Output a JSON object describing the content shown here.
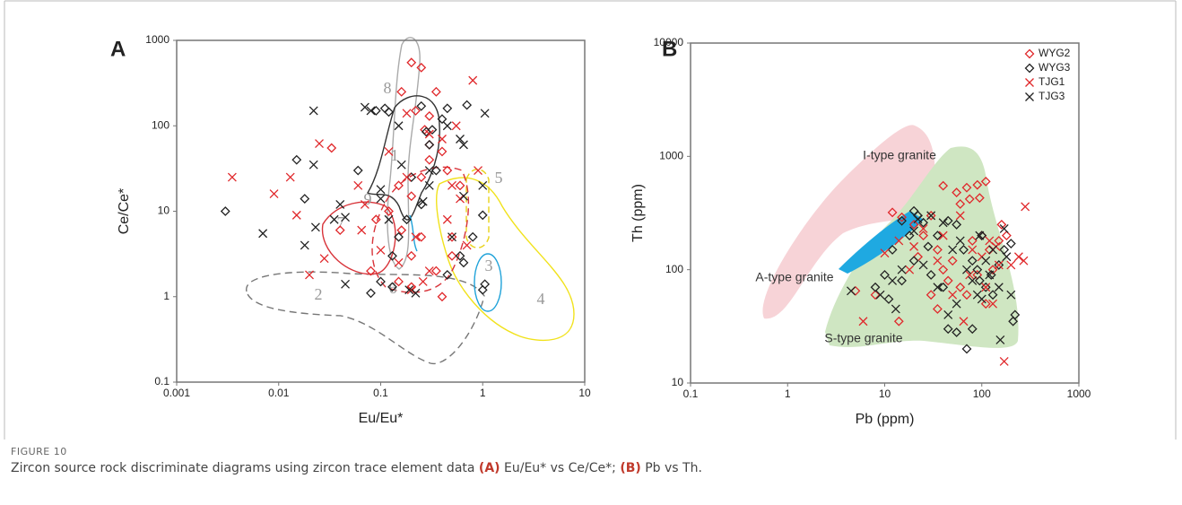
{
  "chart_data": [
    {
      "type": "scatter",
      "panel": "A",
      "xlabel": "Eu/Eu*",
      "ylabel": "Ce/Ce*",
      "log_x": true,
      "log_y": true,
      "xlim": [
        0.001,
        10
      ],
      "ylim": [
        0.1,
        1000
      ],
      "xticks": [
        0.001,
        0.01,
        0.1,
        1,
        10
      ],
      "yticks": [
        0.1,
        1,
        10,
        100,
        1000
      ],
      "annotations": [
        "8",
        "1",
        "5",
        "9",
        "7",
        "6",
        "3",
        "2",
        "4"
      ],
      "series": [
        {
          "marker": "diamond",
          "color": "#e0282b",
          "x": [
            0.2,
            0.25,
            0.16,
            0.22,
            0.3,
            0.35,
            0.27,
            0.4,
            0.3,
            0.45,
            0.25,
            0.2,
            0.15,
            0.12,
            0.09,
            0.04,
            0.033,
            0.3,
            0.2,
            0.25,
            0.15,
            0.35,
            0.4,
            0.2,
            0.5,
            0.6,
            0.08,
            0.5,
            0.16
          ],
          "y": [
            550,
            480,
            250,
            150,
            130,
            250,
            90,
            50,
            60,
            30,
            25,
            15,
            20,
            10,
            8,
            6,
            55,
            40,
            3,
            5,
            1.5,
            2,
            1,
            1.3,
            5,
            20,
            2,
            3,
            6
          ]
        },
        {
          "marker": "diamond",
          "color": "#222222",
          "x": [
            0.003,
            0.015,
            0.018,
            0.06,
            0.09,
            0.11,
            0.12,
            0.25,
            0.28,
            0.32,
            0.45,
            0.7,
            0.4,
            0.3,
            0.35,
            0.2,
            0.18,
            0.15,
            0.13,
            0.08,
            0.1,
            0.13,
            0.45,
            0.65,
            1,
            1.05,
            1,
            0.6,
            0.25,
            0.8
          ],
          "y": [
            10,
            40,
            14,
            30,
            150,
            160,
            145,
            170,
            85,
            90,
            160,
            175,
            120,
            60,
            30,
            25,
            8,
            5,
            3,
            1.1,
            1.5,
            1.3,
            1.8,
            2.5,
            9,
            1.4,
            1.2,
            3,
            12,
            5
          ]
        },
        {
          "marker": "x",
          "color": "#e0282b",
          "x": [
            0.0035,
            0.009,
            0.013,
            0.015,
            0.025,
            0.028,
            0.02,
            0.06,
            0.065,
            0.07,
            0.12,
            0.18,
            0.3,
            0.4,
            0.55,
            0.8,
            0.5,
            0.6,
            0.45,
            0.22,
            0.15,
            0.3,
            0.2,
            0.26,
            0.7,
            0.9,
            0.1,
            0.18
          ],
          "y": [
            25,
            16,
            25,
            9,
            62,
            2.8,
            1.8,
            20,
            6,
            12,
            50,
            140,
            80,
            70,
            100,
            340,
            20,
            14,
            8,
            5,
            2.5,
            2,
            1.2,
            1.5,
            4,
            30,
            3.5,
            25
          ]
        },
        {
          "marker": "x",
          "color": "#222222",
          "x": [
            0.007,
            0.018,
            0.022,
            0.022,
            0.023,
            0.035,
            0.04,
            0.045,
            0.045,
            0.07,
            0.08,
            0.1,
            0.15,
            0.16,
            0.3,
            0.45,
            0.6,
            0.65,
            1.05,
            0.26,
            0.12,
            0.3,
            0.19,
            0.22,
            0.5,
            0.65,
            1,
            0.1
          ],
          "y": [
            5.5,
            4,
            150,
            35,
            6.5,
            8,
            12,
            1.4,
            8.5,
            165,
            150,
            18,
            100,
            35,
            30,
            100,
            70,
            60,
            140,
            13,
            8,
            20,
            1.2,
            1.1,
            5,
            15,
            20,
            14
          ]
        }
      ]
    },
    {
      "type": "scatter",
      "panel": "B",
      "xlabel": "Pb (ppm)",
      "ylabel": "Th (ppm)",
      "log_x": true,
      "log_y": true,
      "xlim": [
        0.1,
        1000
      ],
      "ylim": [
        10,
        10000
      ],
      "xticks": [
        0.1,
        1,
        10,
        100,
        1000
      ],
      "yticks": [
        10,
        100,
        1000,
        10000
      ],
      "legend": "upper right",
      "annotations": [
        "I-type granite",
        "A-type granite",
        "S-type granite"
      ],
      "series": [
        {
          "name": "WYG2",
          "marker": "diamond",
          "color": "#e0282b",
          "x": [
            40,
            70,
            90,
            110,
            55,
            75,
            95,
            60,
            30,
            15,
            12,
            20,
            25,
            35,
            50,
            80,
            100,
            120,
            150,
            130,
            45,
            60,
            90,
            110,
            30,
            5,
            8,
            14,
            40,
            22,
            160,
            180,
            70,
            35
          ],
          "y": [
            550,
            530,
            560,
            600,
            480,
            420,
            430,
            380,
            300,
            290,
            320,
            250,
            200,
            150,
            120,
            180,
            200,
            150,
            180,
            100,
            80,
            70,
            90,
            50,
            60,
            65,
            60,
            35,
            100,
            130,
            250,
            200,
            60,
            45
          ]
        },
        {
          "name": "WYG3",
          "marker": "diamond",
          "color": "#222222",
          "x": [
            20,
            22,
            25,
            15,
            18,
            12,
            10,
            8,
            11,
            15,
            20,
            28,
            35,
            45,
            55,
            65,
            80,
            95,
            110,
            130,
            150,
            200,
            220,
            210,
            70,
            80,
            45,
            55,
            100,
            125,
            170,
            90,
            30,
            40
          ],
          "y": [
            330,
            300,
            260,
            270,
            200,
            150,
            90,
            70,
            55,
            80,
            120,
            160,
            200,
            270,
            250,
            150,
            120,
            80,
            70,
            60,
            110,
            170,
            40,
            35,
            20,
            30,
            30,
            28,
            200,
            90,
            150,
            100,
            90,
            70
          ]
        },
        {
          "name": "TJG1",
          "marker": "x",
          "color": "#e0282b",
          "x": [
            280,
            270,
            240,
            170,
            65,
            6,
            120,
            140,
            150,
            100,
            80,
            40,
            25,
            14,
            10,
            18,
            50,
            75,
            110,
            200,
            60,
            35,
            20,
            130
          ],
          "y": [
            360,
            120,
            130,
            15.5,
            35,
            35,
            180,
            160,
            110,
            130,
            150,
            200,
            230,
            180,
            140,
            100,
            60,
            90,
            70,
            110,
            300,
            120,
            160,
            50
          ]
        },
        {
          "name": "TJG3",
          "marker": "x",
          "color": "#222222",
          "x": [
            4.5,
            9,
            12,
            13,
            15,
            20,
            22,
            30,
            40,
            50,
            60,
            70,
            80,
            90,
            100,
            110,
            120,
            130,
            150,
            170,
            155,
            180,
            200,
            45,
            35,
            25,
            55,
            95
          ],
          "y": [
            65,
            60,
            80,
            45,
            100,
            220,
            280,
            300,
            260,
            150,
            180,
            100,
            80,
            60,
            55,
            120,
            90,
            150,
            70,
            230,
            24,
            130,
            60,
            40,
            70,
            110,
            50,
            200
          ]
        }
      ]
    }
  ],
  "caption": {
    "label": "FIGURE 10",
    "parts": [
      "Zircon source rock discriminate diagrams using zircon trace element data ",
      "(A)",
      " Eu/Eu* vs Ce/Ce*; ",
      "(B)",
      " Pb vs Th."
    ]
  }
}
